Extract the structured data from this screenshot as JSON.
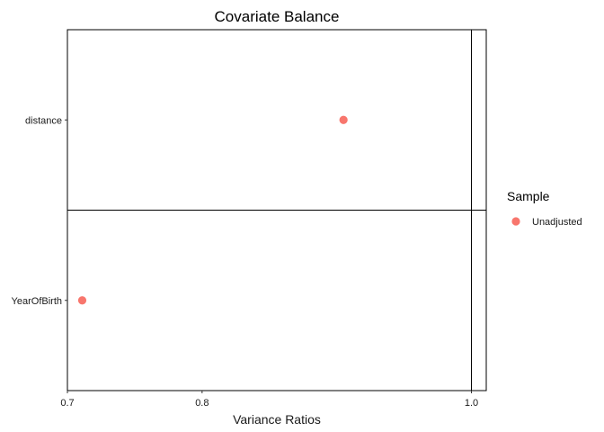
{
  "chart_data": {
    "type": "scatter",
    "title": "Covariate Balance",
    "xlabel": "Variance Ratios",
    "ylabel": "",
    "x_ticks": [
      0.7,
      0.8,
      1.0
    ],
    "x_tick_labels": [
      "0.7",
      "0.8",
      "1.0"
    ],
    "xlim": [
      0.7,
      1.011
    ],
    "reference_line": 1.0,
    "categories": [
      "distance",
      "YearOfBirth"
    ],
    "series": [
      {
        "name": "Unadjusted",
        "color": "#F8766D",
        "points": [
          {
            "category": "distance",
            "x": 0.905
          },
          {
            "category": "YearOfBirth",
            "x": 0.711
          }
        ]
      }
    ],
    "legend": {
      "title": "Sample",
      "position": "right"
    },
    "grid": false
  }
}
